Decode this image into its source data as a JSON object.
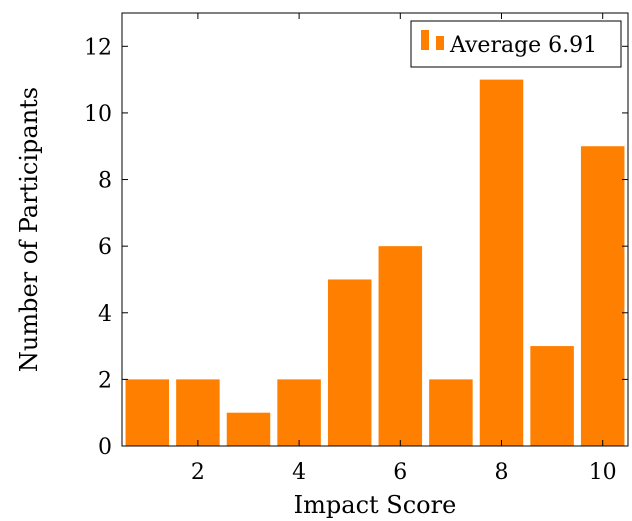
{
  "chart_data": {
    "type": "bar",
    "x": [
      1,
      2,
      3,
      4,
      5,
      6,
      7,
      8,
      9,
      10
    ],
    "values": [
      2,
      2,
      1,
      2,
      5,
      6,
      2,
      11,
      3,
      9
    ],
    "xlabel": "Impact Score",
    "ylabel": "Number of Participants",
    "xlim": [
      0.5,
      10.5
    ],
    "ylim": [
      0,
      13
    ],
    "xticks": [
      2,
      4,
      6,
      8,
      10
    ],
    "yticks": [
      0,
      2,
      4,
      6,
      8,
      10,
      12
    ],
    "grid": false,
    "legend": {
      "label": "Average 6.91",
      "placement": "top-right"
    },
    "bar_color": "#ff8000"
  }
}
